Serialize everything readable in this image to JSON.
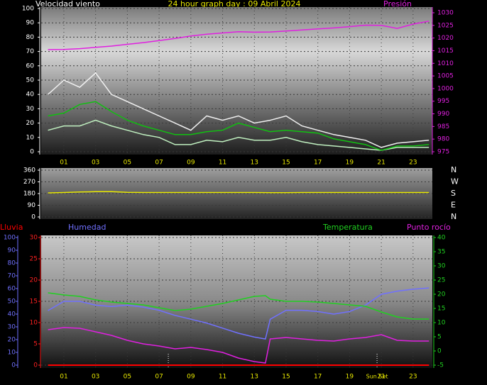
{
  "chart_data": [
    {
      "type": "line",
      "title": "24 hour graph day : 09 Abril 2024",
      "y_label": "Velocidad viento",
      "x": [
        0,
        1,
        2,
        3,
        4,
        5,
        6,
        7,
        8,
        9,
        10,
        11,
        12,
        13,
        14,
        15,
        16,
        17,
        18,
        19,
        20,
        21,
        22,
        23,
        24
      ],
      "xlim": [
        0,
        24
      ],
      "xticks": [
        {
          "value": 1,
          "label": "01"
        },
        {
          "value": 3,
          "label": "03"
        },
        {
          "value": 5,
          "label": "05"
        },
        {
          "value": 7,
          "label": "07"
        },
        {
          "value": 9,
          "label": "09"
        },
        {
          "value": 11,
          "label": "11"
        },
        {
          "value": 13,
          "label": "13"
        },
        {
          "value": 15,
          "label": "15"
        },
        {
          "value": 17,
          "label": "17"
        },
        {
          "value": 19,
          "label": "19"
        },
        {
          "value": 21,
          "label": "21"
        },
        {
          "value": 23,
          "label": "23"
        }
      ],
      "ylim": [
        0,
        100
      ],
      "yticks": [
        0,
        10,
        20,
        30,
        40,
        50,
        60,
        70,
        80,
        90,
        100
      ],
      "y2lim": [
        975,
        1030
      ],
      "y2ticks": [
        975,
        980,
        985,
        990,
        995,
        1000,
        1005,
        1010,
        1015,
        1020,
        1025,
        1030
      ],
      "grid": true,
      "axis_colors": {
        "x": "#e8e800",
        "y": "#ffffff",
        "y2": "#e020e0"
      },
      "series": [
        {
          "color": "#f0f0f0",
          "values": [
            40,
            50,
            45,
            55,
            40,
            35,
            30,
            25,
            20,
            15,
            25,
            22,
            25,
            20,
            22,
            25,
            18,
            15,
            12,
            10,
            8,
            3,
            6,
            7,
            8
          ]
        },
        {
          "color": "#c0f0c0",
          "values": [
            15,
            18,
            18,
            22,
            18,
            15,
            12,
            10,
            5,
            5,
            8,
            7,
            10,
            8,
            8,
            10,
            7,
            5,
            4,
            3,
            2,
            1,
            3,
            3,
            3
          ]
        },
        {
          "color": "#10c010",
          "values": [
            25,
            27,
            33,
            35,
            28,
            22,
            18,
            15,
            12,
            12,
            14,
            15,
            20,
            17,
            14,
            15,
            14,
            13,
            9,
            7,
            5,
            1,
            4,
            4,
            5
          ]
        },
        {
          "name": "Presión",
          "axis": "y2",
          "color": "#e020e0",
          "values": [
            1015.4,
            1015.5,
            1015.8,
            1016.3,
            1016.8,
            1017.5,
            1018.2,
            1019,
            1019.8,
            1020.8,
            1021.5,
            1022,
            1022.5,
            1022.3,
            1022.4,
            1022.8,
            1023.2,
            1023.6,
            1024,
            1024.5,
            1025.1,
            1025,
            1023.8,
            1025.5,
            1026.7
          ]
        }
      ]
    },
    {
      "type": "line",
      "x": [
        0,
        1,
        2,
        3,
        4,
        5,
        6,
        7,
        8,
        9,
        10,
        11,
        12,
        13,
        14,
        15,
        16,
        17,
        18,
        19,
        20,
        21,
        22,
        23,
        24
      ],
      "xlim": [
        0,
        24
      ],
      "ylim": [
        0,
        360
      ],
      "yticks": [
        0,
        90,
        180,
        270,
        360
      ],
      "y2lim": [
        0,
        360
      ],
      "y2ticks": [
        {
          "value": 360,
          "label": "N"
        },
        {
          "value": 270,
          "label": "W"
        },
        {
          "value": 180,
          "label": "S"
        },
        {
          "value": 90,
          "label": "E"
        },
        {
          "value": 0,
          "label": "N"
        }
      ],
      "grid": true,
      "axis_colors": {
        "y": "#ffffff",
        "y2": "#ffffff"
      },
      "series": [
        {
          "color": "#e8e800",
          "values": [
            185,
            188,
            192,
            195,
            195,
            190,
            188,
            188,
            188,
            188,
            188,
            188,
            188,
            188,
            187,
            187,
            188,
            188,
            188,
            188,
            188,
            188,
            188,
            188,
            188
          ]
        }
      ]
    },
    {
      "type": "line",
      "x": [
        0,
        1,
        2,
        3,
        4,
        5,
        6,
        7,
        8,
        9,
        10,
        11,
        12,
        13,
        13.7,
        14,
        15,
        16,
        17,
        18,
        19,
        20,
        21,
        22,
        23,
        24
      ],
      "xlim": [
        0,
        24
      ],
      "xticks": [
        {
          "value": 1,
          "label": "01"
        },
        {
          "value": 3,
          "label": "03"
        },
        {
          "value": 5,
          "label": "05"
        },
        {
          "value": 7,
          "label": "07"
        },
        {
          "value": 9,
          "label": "09"
        },
        {
          "value": 11,
          "label": "11"
        },
        {
          "value": 13,
          "label": "13"
        },
        {
          "value": 15,
          "label": "15"
        },
        {
          "value": 17,
          "label": "17"
        },
        {
          "value": 19,
          "label": "19"
        },
        {
          "value": 21,
          "label": "21"
        },
        {
          "value": 23,
          "label": "23"
        }
      ],
      "ylim": [
        0,
        100
      ],
      "yticks": [
        0,
        10,
        20,
        30,
        40,
        50,
        60,
        70,
        80,
        90,
        100
      ],
      "y3lim": [
        0,
        30
      ],
      "y3ticks": [
        0,
        5,
        10,
        15,
        20,
        25,
        30
      ],
      "y2lim": [
        -5,
        40
      ],
      "y2ticks": [
        -5,
        0,
        5,
        10,
        15,
        20,
        25,
        30,
        35,
        40
      ],
      "grid": true,
      "grid_axis": "y3",
      "axis_colors": {
        "x": "#e8e800",
        "y": "#7070ff",
        "y3": "#ff2020",
        "y2": "#20d020"
      },
      "markers": [
        {
          "x": 7.58
        },
        {
          "x": 20.73,
          "label": "Sun Set"
        }
      ],
      "series": [
        {
          "name": "Lluvia",
          "axis": "y3",
          "color": "#ff0000",
          "values": [
            0,
            0,
            0,
            0,
            0,
            0,
            0,
            0,
            0,
            0,
            0,
            0,
            0,
            0,
            0,
            0,
            0,
            0,
            0,
            0,
            0,
            0,
            0,
            0,
            0,
            0
          ]
        },
        {
          "name": "Humedad",
          "axis": "y",
          "color": "#7070ff",
          "values": [
            42.8,
            50,
            50,
            47,
            46,
            47,
            45.5,
            43,
            39,
            36,
            33,
            29,
            25,
            22,
            20.5,
            36,
            43,
            43,
            42,
            40,
            42,
            47,
            55.5,
            58,
            59.5,
            60.5
          ]
        },
        {
          "name": "Temperatura",
          "axis": "y2",
          "color": "#20d020",
          "values": [
            20.5,
            19.75,
            19.25,
            18,
            17.25,
            16.75,
            16.25,
            15.25,
            14.25,
            14.75,
            15.75,
            16.75,
            18,
            19.25,
            19.5,
            18.25,
            17.5,
            17.5,
            17.25,
            16.75,
            16.25,
            15.75,
            13.75,
            12,
            11.25,
            11.25
          ]
        },
        {
          "name": "Punto rocío",
          "axis": "y2",
          "color": "#e020e0",
          "values": [
            7.5,
            8.25,
            8,
            6.75,
            5.5,
            3.75,
            2.5,
            1.75,
            0.75,
            1.25,
            0.5,
            -0.5,
            -2.5,
            -3.75,
            -4.25,
            4.25,
            4.75,
            4.25,
            3.75,
            3.5,
            4.25,
            4.75,
            5.75,
            3.75,
            3.5,
            3.5
          ]
        }
      ]
    }
  ]
}
